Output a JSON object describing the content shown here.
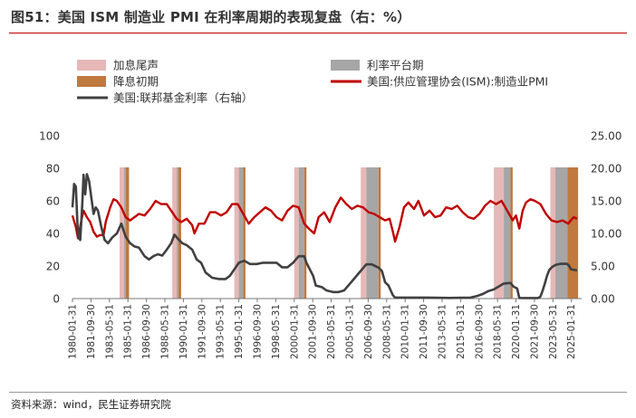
{
  "title": "图51：美国 ISM 制造业 PMI 在利率周期的表现复盘（右：%）",
  "source": "资料来源：wind，民生证券研究院",
  "colors": {
    "hike": "#e6b8b8",
    "plateau": "#a6a6a6",
    "cut": "#c0793f",
    "pmi": "#c00000",
    "fed": "#404040"
  },
  "legend": [
    {
      "label": "加息尾声",
      "type": "box",
      "color": "#e6b8b8"
    },
    {
      "label": "利率平台期",
      "type": "box",
      "color": "#a6a6a6"
    },
    {
      "label": "降息初期",
      "type": "box",
      "color": "#c0793f"
    },
    {
      "label": "美国:供应管理协会(ISM):制造业PMI",
      "type": "line",
      "color": "#c00000"
    },
    {
      "label": "美国:联邦基金利率（右轴）",
      "type": "line",
      "color": "#404040"
    }
  ],
  "chart_data": {
    "type": "line",
    "x_range": [
      "1980-01-31",
      "2025-12-31"
    ],
    "x_tick_labels": [
      "1980-01-31",
      "1981-09-30",
      "1983-05-31",
      "1985-01-31",
      "1986-09-30",
      "1988-05-31",
      "1990-01-31",
      "1991-09-30",
      "1993-05-31",
      "1995-01-31",
      "1996-09-30",
      "1998-05-31",
      "2000-01-31",
      "2001-09-30",
      "2003-05-31",
      "2005-01-31",
      "2006-09-30",
      "2008-05-31",
      "2010-01-31",
      "2011-09-30",
      "2013-05-31",
      "2015-01-31",
      "2016-09-30",
      "2018-05-31",
      "2020-01-31",
      "2021-09-30",
      "2023-05-31",
      "2025-01-31"
    ],
    "y_left": {
      "ylim": [
        0,
        100
      ],
      "ticks": [
        "0",
        "20",
        "40",
        "60",
        "80",
        "100"
      ]
    },
    "y_right": {
      "ylim": [
        0,
        25
      ],
      "ticks": [
        "0.00",
        "5.00",
        "10.00",
        "15.00",
        "20.00",
        "25.00"
      ]
    },
    "shaded_periods": [
      {
        "phase": "hike",
        "start": "1984.25",
        "end": "1984.65"
      },
      {
        "phase": "plateau",
        "start": "1984.65",
        "end": "1984.8"
      },
      {
        "phase": "cut",
        "start": "1984.8",
        "end": "1985.1"
      },
      {
        "phase": "hike",
        "start": "1989.0",
        "end": "1989.4"
      },
      {
        "phase": "plateau",
        "start": "1989.4",
        "end": "1989.55"
      },
      {
        "phase": "cut",
        "start": "1989.55",
        "end": "1989.8"
      },
      {
        "phase": "hike",
        "start": "1994.6",
        "end": "1995.0"
      },
      {
        "phase": "plateau",
        "start": "1995.0",
        "end": "1995.4"
      },
      {
        "phase": "cut",
        "start": "1995.4",
        "end": "1995.6"
      },
      {
        "phase": "hike",
        "start": "2000.0",
        "end": "2000.4"
      },
      {
        "phase": "plateau",
        "start": "2000.4",
        "end": "2000.9"
      },
      {
        "phase": "cut",
        "start": "2000.9",
        "end": "2001.1"
      },
      {
        "phase": "hike",
        "start": "2006.0",
        "end": "2006.5"
      },
      {
        "phase": "plateau",
        "start": "2006.5",
        "end": "2007.6"
      },
      {
        "phase": "cut",
        "start": "2007.6",
        "end": "2007.8"
      },
      {
        "phase": "hike",
        "start": "2018.0",
        "end": "2018.9"
      },
      {
        "phase": "plateau",
        "start": "2018.9",
        "end": "2019.5"
      },
      {
        "phase": "cut",
        "start": "2019.5",
        "end": "2019.7"
      },
      {
        "phase": "hike",
        "start": "2023.1",
        "end": "2023.55"
      },
      {
        "phase": "plateau",
        "start": "2023.55",
        "end": "2024.65"
      },
      {
        "phase": "cut",
        "start": "2024.65",
        "end": "2025.6"
      }
    ],
    "series": [
      {
        "name": "美国:供应管理协会(ISM):制造业PMI",
        "axis": "left",
        "x": [
          1980.0,
          1980.3,
          1980.5,
          1980.8,
          1981.0,
          1981.3,
          1981.6,
          1981.9,
          1982.2,
          1982.5,
          1982.8,
          1983.0,
          1983.4,
          1983.7,
          1984.0,
          1984.4,
          1984.8,
          1985.2,
          1985.6,
          1986.0,
          1986.5,
          1987.0,
          1987.5,
          1988.0,
          1988.5,
          1989.0,
          1989.4,
          1989.8,
          1990.3,
          1990.8,
          1991.0,
          1991.4,
          1991.9,
          1992.4,
          1992.9,
          1993.4,
          1993.9,
          1994.4,
          1994.9,
          1995.4,
          1995.9,
          1996.4,
          1996.9,
          1997.4,
          1997.9,
          1998.4,
          1998.9,
          1999.4,
          1999.9,
          2000.4,
          2000.9,
          2001.3,
          2001.8,
          2002.2,
          2002.7,
          2003.2,
          2003.7,
          2004.2,
          2004.7,
          2005.2,
          2005.7,
          2006.2,
          2006.7,
          2007.2,
          2007.7,
          2008.2,
          2008.6,
          2008.9,
          2009.1,
          2009.5,
          2009.9,
          2010.3,
          2010.8,
          2011.2,
          2011.7,
          2012.2,
          2012.7,
          2013.2,
          2013.7,
          2014.2,
          2014.7,
          2015.2,
          2015.7,
          2016.2,
          2016.7,
          2017.2,
          2017.7,
          2018.2,
          2018.7,
          2019.2,
          2019.7,
          2020.0,
          2020.3,
          2020.6,
          2020.9,
          2021.3,
          2021.7,
          2022.2,
          2022.7,
          2023.2,
          2023.7,
          2024.2,
          2024.7,
          2025.2,
          2025.5
        ],
        "y": [
          51,
          44,
          37,
          48,
          54,
          50,
          47,
          41,
          38,
          39,
          39,
          47,
          56,
          61,
          60,
          56,
          50,
          48,
          50,
          52,
          51,
          55,
          60,
          58,
          58,
          53,
          49,
          47,
          49,
          45,
          40,
          46,
          46,
          53,
          53,
          51,
          53,
          58,
          58,
          52,
          46,
          50,
          53,
          56,
          54,
          50,
          48,
          54,
          57,
          56,
          46,
          43,
          40,
          50,
          53,
          47,
          56,
          62,
          58,
          55,
          57,
          56,
          53,
          52,
          50,
          48,
          49,
          41,
          35,
          44,
          56,
          59,
          55,
          60,
          51,
          54,
          50,
          51,
          56,
          55,
          57,
          53,
          50,
          49,
          52,
          57,
          60,
          58,
          60,
          54,
          48,
          51,
          43,
          54,
          59,
          61,
          60,
          58,
          52,
          48,
          47,
          48,
          46,
          50,
          49
        ]
      },
      {
        "name": "美国:联邦基金利率（右轴）",
        "axis": "right",
        "x": [
          1980.0,
          1980.15,
          1980.3,
          1980.5,
          1980.7,
          1980.9,
          1981.0,
          1981.15,
          1981.3,
          1981.5,
          1981.7,
          1981.9,
          1982.1,
          1982.3,
          1982.6,
          1982.9,
          1983.2,
          1983.6,
          1984.0,
          1984.4,
          1984.8,
          1985.2,
          1985.6,
          1986.0,
          1986.5,
          1986.9,
          1987.3,
          1987.7,
          1988.1,
          1988.5,
          1988.9,
          1989.2,
          1989.5,
          1989.9,
          1990.3,
          1990.8,
          1991.2,
          1991.6,
          1992.0,
          1992.6,
          1993.2,
          1993.8,
          1994.2,
          1994.6,
          1995.0,
          1995.5,
          1996.0,
          1996.6,
          1997.2,
          1997.8,
          1998.4,
          1998.9,
          1999.4,
          1999.9,
          2000.4,
          2000.9,
          2001.1,
          2001.4,
          2001.7,
          2001.95,
          2002.5,
          2002.9,
          2003.5,
          2004.0,
          2004.5,
          2005.0,
          2005.5,
          2006.0,
          2006.5,
          2007.0,
          2007.6,
          2007.9,
          2008.2,
          2008.5,
          2008.9,
          2009.1,
          2010.0,
          2012.0,
          2014.0,
          2015.9,
          2016.5,
          2017.0,
          2017.5,
          2018.0,
          2018.5,
          2018.9,
          2019.5,
          2019.8,
          2020.1,
          2020.3,
          2021.0,
          2022.0,
          2022.2,
          2022.4,
          2022.6,
          2022.8,
          2023.0,
          2023.3,
          2023.6,
          2024.0,
          2024.6,
          2024.8,
          2024.95,
          2025.5
        ],
        "y": [
          14.0,
          17.6,
          17.2,
          9.5,
          9.0,
          15.0,
          19.0,
          16.0,
          19.1,
          18.0,
          15.5,
          13.0,
          14.0,
          13.5,
          11.0,
          9.0,
          8.5,
          9.4,
          10.0,
          11.5,
          9.5,
          8.5,
          8.0,
          7.8,
          6.5,
          6.0,
          6.5,
          6.8,
          6.6,
          7.5,
          8.5,
          9.8,
          9.2,
          8.5,
          8.2,
          7.5,
          6.0,
          5.5,
          4.0,
          3.2,
          3.0,
          3.0,
          3.5,
          4.5,
          5.5,
          5.8,
          5.3,
          5.3,
          5.5,
          5.5,
          5.5,
          4.8,
          4.8,
          5.5,
          6.5,
          6.5,
          5.5,
          4.5,
          3.5,
          2.0,
          1.75,
          1.25,
          1.0,
          1.0,
          1.25,
          2.25,
          3.25,
          4.25,
          5.25,
          5.25,
          4.75,
          4.25,
          2.5,
          2.0,
          0.5,
          0.15,
          0.15,
          0.15,
          0.1,
          0.15,
          0.4,
          0.7,
          1.15,
          1.4,
          1.9,
          2.3,
          2.4,
          1.8,
          1.55,
          0.1,
          0.08,
          0.08,
          0.3,
          1.2,
          2.3,
          3.5,
          4.4,
          4.9,
          5.2,
          5.33,
          5.33,
          5.0,
          4.5,
          4.33
        ]
      }
    ]
  }
}
